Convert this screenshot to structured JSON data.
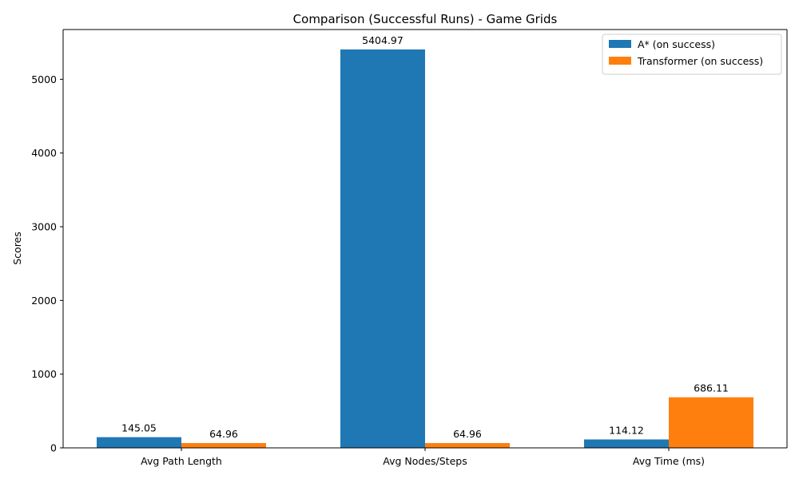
{
  "chart_data": {
    "type": "bar",
    "title": "Comparison (Successful Runs) - Game Grids",
    "xlabel": "",
    "ylabel": "Scores",
    "categories": [
      "Avg Path Length",
      "Avg Nodes/Steps",
      "Avg Time (ms)"
    ],
    "series": [
      {
        "name": "A* (on success)",
        "color": "#1f77b4",
        "values": [
          145.05,
          5404.97,
          114.12
        ],
        "labels": [
          "145.05",
          "5404.97",
          "114.12"
        ]
      },
      {
        "name": "Transformer (on success)",
        "color": "#ff7f0e",
        "values": [
          64.96,
          64.96,
          686.11
        ],
        "labels": [
          "64.96",
          "64.96",
          "686.11"
        ]
      }
    ],
    "ylim": [
      0,
      5675
    ],
    "yticks": [
      0,
      1000,
      2000,
      3000,
      4000,
      5000
    ],
    "grid": false,
    "legend_position": "top-right"
  }
}
